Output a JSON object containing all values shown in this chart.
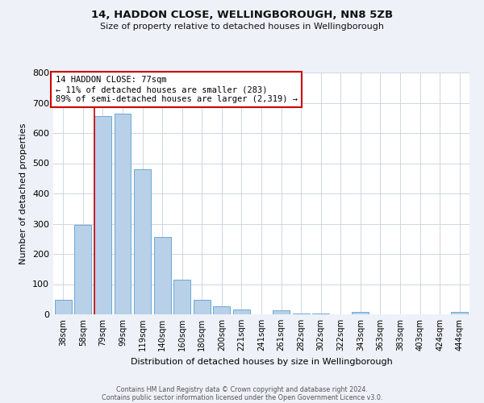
{
  "title": "14, HADDON CLOSE, WELLINGBOROUGH, NN8 5ZB",
  "subtitle": "Size of property relative to detached houses in Wellingborough",
  "xlabel": "Distribution of detached houses by size in Wellingborough",
  "ylabel": "Number of detached properties",
  "bar_labels": [
    "38sqm",
    "58sqm",
    "79sqm",
    "99sqm",
    "119sqm",
    "140sqm",
    "160sqm",
    "180sqm",
    "200sqm",
    "221sqm",
    "241sqm",
    "261sqm",
    "282sqm",
    "302sqm",
    "322sqm",
    "343sqm",
    "363sqm",
    "383sqm",
    "403sqm",
    "424sqm",
    "444sqm"
  ],
  "bar_heights": [
    48,
    295,
    655,
    665,
    480,
    255,
    115,
    49,
    28,
    15,
    0,
    13,
    4,
    3,
    0,
    9,
    0,
    0,
    0,
    0,
    7
  ],
  "bar_color": "#b8d0e8",
  "bar_edge_color": "#6aaad4",
  "vline_x_index": 2,
  "vline_color": "#cc0000",
  "ylim": [
    0,
    800
  ],
  "yticks": [
    0,
    100,
    200,
    300,
    400,
    500,
    600,
    700,
    800
  ],
  "annotation_line1": "14 HADDON CLOSE: 77sqm",
  "annotation_line2": "← 11% of detached houses are smaller (283)",
  "annotation_line3": "89% of semi-detached houses are larger (2,319) →",
  "footer_line1": "Contains HM Land Registry data © Crown copyright and database right 2024.",
  "footer_line2": "Contains public sector information licensed under the Open Government Licence v3.0.",
  "bg_color": "#eef2f8",
  "plot_bg_color": "#ffffff",
  "grid_color": "#c8d0dc"
}
